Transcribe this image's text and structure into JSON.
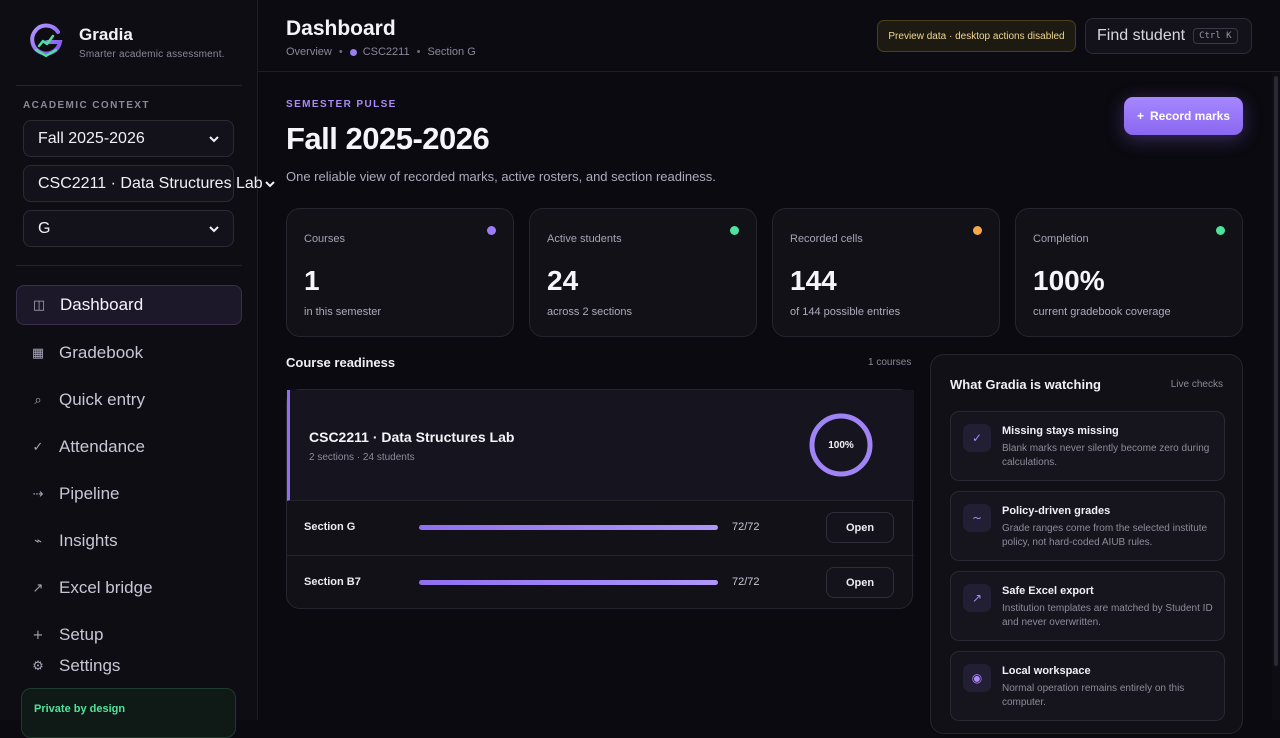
{
  "brand": {
    "name": "Gradia",
    "tagline": "Smarter academic assessment."
  },
  "context": {
    "label": "ACADEMIC CONTEXT",
    "semester": "Fall 2025-2026",
    "course": "CSC2211 · Data Structures Lab",
    "section": "G"
  },
  "nav": [
    {
      "label": "Dashboard",
      "icon": "dashboard-icon",
      "glyph": "◫",
      "active": true
    },
    {
      "label": "Gradebook",
      "icon": "grid-icon",
      "glyph": "▦"
    },
    {
      "label": "Quick entry",
      "icon": "search-icon",
      "glyph": "⌕"
    },
    {
      "label": "Attendance",
      "icon": "check-icon",
      "glyph": "✓"
    },
    {
      "label": "Pipeline",
      "icon": "arrow-icon",
      "glyph": "⇢"
    },
    {
      "label": "Insights",
      "icon": "trend-icon",
      "glyph": "⌁"
    },
    {
      "label": "Excel bridge",
      "icon": "export-icon",
      "glyph": "↗"
    },
    {
      "label": "Setup",
      "icon": "plus-icon",
      "glyph": "+"
    },
    {
      "label": "Settings",
      "icon": "gear-icon",
      "glyph": "⚙"
    }
  ],
  "private_note": "Private by design",
  "header": {
    "title": "Dashboard",
    "breadcrumbs": [
      "Overview",
      "CSC2211",
      "Section G"
    ],
    "preview_badge": "Preview data · desktop actions disabled",
    "find_label": "Find student",
    "find_shortcut": "Ctrl K"
  },
  "hero": {
    "eyebrow": "SEMESTER PULSE",
    "title": "Fall 2025-2026",
    "subtitle": "One reliable view of recorded marks, active rosters, and section readiness.",
    "record_label": "Record marks"
  },
  "stats": [
    {
      "label": "Courses",
      "value": "1",
      "note": "in this semester",
      "color": "#9b7cf4"
    },
    {
      "label": "Active students",
      "value": "24",
      "note": "across 2 sections",
      "color": "#4ee39c"
    },
    {
      "label": "Recorded cells",
      "value": "144",
      "note": "of 144 possible entries",
      "color": "#f5a94a"
    },
    {
      "label": "Completion",
      "value": "100%",
      "note": "current gradebook coverage",
      "color": "#4ee39c"
    }
  ],
  "readiness": {
    "title": "Course readiness",
    "count": "1 courses",
    "course": {
      "name": "CSC2211 · Data Structures Lab",
      "meta": "2 sections · 24 students",
      "completion_label": "100%",
      "completion": 1.0
    },
    "sections": [
      {
        "name": "Section G",
        "count": "72/72",
        "fraction": 1.0,
        "action": "Open"
      },
      {
        "name": "Section B7",
        "count": "72/72",
        "fraction": 1.0,
        "action": "Open"
      }
    ]
  },
  "watching": {
    "title": "What Gradia is watching",
    "live": "Live checks",
    "items": [
      {
        "title": "Missing stays missing",
        "desc": "Blank marks never silently become zero during calculations.",
        "icon": "check-icon",
        "glyph": "✓"
      },
      {
        "title": "Policy-driven grades",
        "desc": "Grade ranges come from the selected institute policy, not hard-coded AIUB rules.",
        "icon": "wave-icon",
        "glyph": "~"
      },
      {
        "title": "Safe Excel export",
        "desc": "Institution templates are matched by Student ID and never overwritten.",
        "icon": "export-icon",
        "glyph": "↗"
      },
      {
        "title": "Local workspace",
        "desc": "Normal operation remains entirely on this computer.",
        "icon": "target-icon",
        "glyph": "◉"
      }
    ]
  },
  "colors": {
    "accent": "#9b7cf4",
    "success": "#4ee39c",
    "warning": "#f5a94a"
  }
}
